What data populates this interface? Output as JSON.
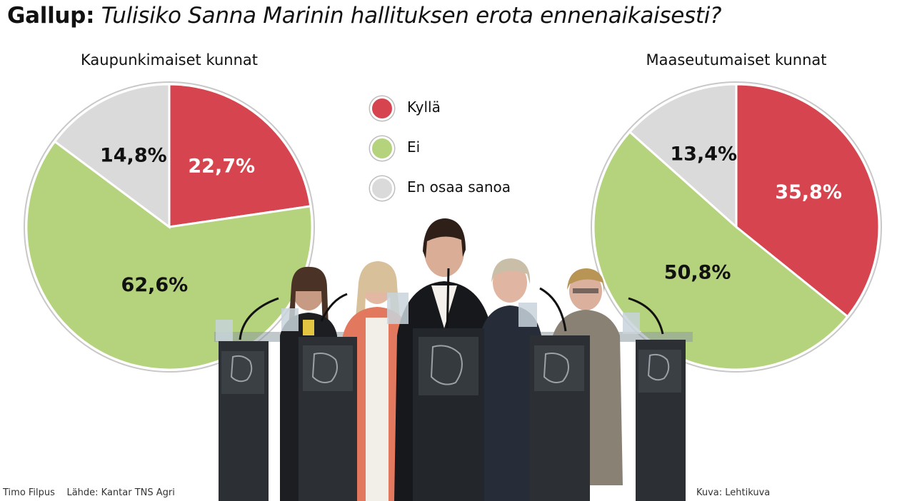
{
  "header": {
    "lead": "Gallup:",
    "question": "Tulisiko Sanna Marinin hallituksen erota ennenaikaisesti?"
  },
  "legend": [
    {
      "label": "Kyllä",
      "color": "#d6454f"
    },
    {
      "label": "Ei",
      "color": "#b5d27d"
    },
    {
      "label": "En osaa sanoa",
      "color": "#dadada"
    }
  ],
  "chart_data": [
    {
      "type": "pie",
      "title": "Kaupunkimaiset kunnat",
      "slices": [
        {
          "label": "Kyllä",
          "value": 22.7,
          "text": "22,7%",
          "color": "#d6454f",
          "text_color": "#ffffff"
        },
        {
          "label": "Ei",
          "value": 62.6,
          "text": "62,6%",
          "color": "#b5d27d",
          "text_color": "#111111"
        },
        {
          "label": "En osaa sanoa",
          "value": 14.8,
          "text": "14,8%",
          "color": "#dadada",
          "text_color": "#111111"
        }
      ]
    },
    {
      "type": "pie",
      "title": "Maaseutumaiset kunnat",
      "slices": [
        {
          "label": "Kyllä",
          "value": 35.8,
          "text": "35,8%",
          "color": "#d6454f",
          "text_color": "#ffffff"
        },
        {
          "label": "Ei",
          "value": 50.8,
          "text": "50,8%",
          "color": "#b5d27d",
          "text_color": "#111111"
        },
        {
          "label": "En osaa sanoa",
          "value": 13.4,
          "text": "13,4%",
          "color": "#dadada",
          "text_color": "#111111"
        }
      ]
    }
  ],
  "footer": {
    "author": "Timo Filpus",
    "source": "Lähde: Kantar TNS Agri",
    "photo_credit": "Kuva: Lehtikuva"
  }
}
